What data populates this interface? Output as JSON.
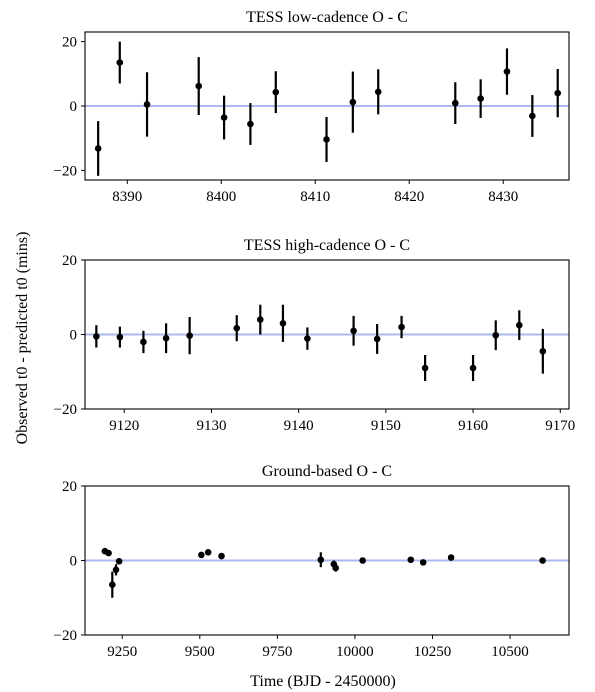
{
  "figure": {
    "shared_ylabel": "Observed t0 - predicted t0 (mins)",
    "shared_xlabel": "Time (BJD - 2450000)"
  },
  "chart_data": [
    {
      "type": "scatter",
      "title": "TESS low-cadence O - C",
      "xlabel": "",
      "ylabel": "",
      "xlim": [
        8385.5,
        8437
      ],
      "ylim": [
        -23,
        23
      ],
      "xticks": [
        8390,
        8400,
        8410,
        8420,
        8430
      ],
      "yticks": [
        -20,
        0,
        20
      ],
      "reference_line": 0,
      "reference_color": "#a8baf0",
      "marker_color": "#000000",
      "grid": false,
      "points": [
        {
          "x": 8386.9,
          "y": -13.2,
          "err": 8.5
        },
        {
          "x": 8389.2,
          "y": 13.5,
          "err": 6.5
        },
        {
          "x": 8392.1,
          "y": 0.5,
          "err": 10.0
        },
        {
          "x": 8397.6,
          "y": 6.2,
          "err": 9.0
        },
        {
          "x": 8400.3,
          "y": -3.6,
          "err": 6.8
        },
        {
          "x": 8403.1,
          "y": -5.6,
          "err": 6.5
        },
        {
          "x": 8405.8,
          "y": 4.3,
          "err": 6.5
        },
        {
          "x": 8411.2,
          "y": -10.4,
          "err": 7.0
        },
        {
          "x": 8414.0,
          "y": 1.2,
          "err": 9.5
        },
        {
          "x": 8416.7,
          "y": 4.4,
          "err": 7.0
        },
        {
          "x": 8424.9,
          "y": 0.9,
          "err": 6.5
        },
        {
          "x": 8427.6,
          "y": 2.3,
          "err": 6.0
        },
        {
          "x": 8430.4,
          "y": 10.7,
          "err": 7.2
        },
        {
          "x": 8433.1,
          "y": -3.1,
          "err": 6.5
        },
        {
          "x": 8435.8,
          "y": 4.0,
          "err": 7.5
        }
      ]
    },
    {
      "type": "scatter",
      "title": "TESS high-cadence O - C",
      "xlabel": "",
      "ylabel": "",
      "xlim": [
        9115.5,
        9171
      ],
      "ylim": [
        -20,
        20
      ],
      "xticks": [
        9120,
        9130,
        9140,
        9150,
        9160,
        9170
      ],
      "yticks": [
        -20,
        0,
        20
      ],
      "reference_line": 0,
      "reference_color": "#a8baf0",
      "marker_color": "#000000",
      "grid": false,
      "points": [
        {
          "x": 9116.8,
          "y": -0.5,
          "err": 3.0
        },
        {
          "x": 9119.5,
          "y": -0.7,
          "err": 2.8
        },
        {
          "x": 9122.2,
          "y": -2.0,
          "err": 3.0
        },
        {
          "x": 9124.8,
          "y": -1.0,
          "err": 4.0
        },
        {
          "x": 9127.5,
          "y": -0.3,
          "err": 5.0
        },
        {
          "x": 9132.9,
          "y": 1.7,
          "err": 3.5
        },
        {
          "x": 9135.6,
          "y": 4.0,
          "err": 4.0
        },
        {
          "x": 9138.2,
          "y": 3.0,
          "err": 5.0
        },
        {
          "x": 9141.0,
          "y": -1.1,
          "err": 3.0
        },
        {
          "x": 9146.3,
          "y": 1.0,
          "err": 4.0
        },
        {
          "x": 9149.0,
          "y": -1.2,
          "err": 4.0
        },
        {
          "x": 9151.8,
          "y": 2.0,
          "err": 3.0
        },
        {
          "x": 9154.5,
          "y": -9.0,
          "err": 3.5
        },
        {
          "x": 9160.0,
          "y": -9.0,
          "err": 3.5
        },
        {
          "x": 9162.6,
          "y": -0.2,
          "err": 4.0
        },
        {
          "x": 9165.3,
          "y": 2.5,
          "err": 4.0
        },
        {
          "x": 9168.0,
          "y": -4.5,
          "err": 6.0
        }
      ]
    },
    {
      "type": "scatter",
      "title": "Ground-based O - C",
      "xlabel": "Time (BJD - 2450000)",
      "ylabel": "",
      "xlim": [
        9130,
        10690
      ],
      "ylim": [
        -20,
        20
      ],
      "xticks": [
        9250,
        9500,
        9750,
        10000,
        10250,
        10500
      ],
      "yticks": [
        -20,
        0,
        20
      ],
      "reference_line": 0,
      "reference_color": "#a8baf0",
      "marker_color": "#000000",
      "grid": false,
      "points": [
        {
          "x": 9194,
          "y": 2.5,
          "err": 0.5
        },
        {
          "x": 9206,
          "y": 2.0,
          "err": 0.5
        },
        {
          "x": 9218,
          "y": -6.5,
          "err": 3.5
        },
        {
          "x": 9230,
          "y": -2.5,
          "err": 1.5
        },
        {
          "x": 9240,
          "y": -0.2,
          "err": 0.8
        },
        {
          "x": 9505,
          "y": 1.5,
          "err": 0.6
        },
        {
          "x": 9527,
          "y": 2.2,
          "err": 0.6
        },
        {
          "x": 9570,
          "y": 1.2,
          "err": 0.5
        },
        {
          "x": 9890,
          "y": 0.2,
          "err": 2.0
        },
        {
          "x": 9932,
          "y": -1.0,
          "err": 1.0
        },
        {
          "x": 9938,
          "y": -2.0,
          "err": 1.0
        },
        {
          "x": 10025,
          "y": 0.0,
          "err": 0.6
        },
        {
          "x": 10180,
          "y": 0.2,
          "err": 0.5
        },
        {
          "x": 10220,
          "y": -0.5,
          "err": 0.5
        },
        {
          "x": 10310,
          "y": 0.8,
          "err": 0.5
        },
        {
          "x": 10605,
          "y": 0.0,
          "err": 0.5
        }
      ]
    }
  ]
}
